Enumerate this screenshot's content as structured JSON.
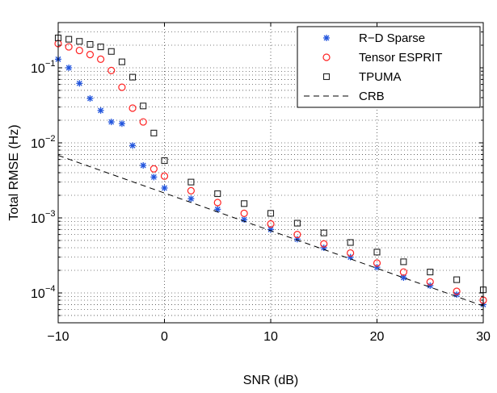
{
  "chart_data": {
    "type": "scatter",
    "xlabel": "SNR (dB)",
    "ylabel": "Total RMSE (Hz)",
    "yscale": "log",
    "xlim": [
      -10,
      30
    ],
    "ylim": [
      4e-05,
      0.4
    ],
    "grid": true,
    "legend_position": "top-right",
    "x_ticks": [
      -10,
      0,
      10,
      20,
      30
    ],
    "y_ticks": [
      {
        "value": 0.1,
        "base": "10",
        "exp": "−1"
      },
      {
        "value": 0.01,
        "base": "10",
        "exp": "−2"
      },
      {
        "value": 0.001,
        "base": "10",
        "exp": "−3"
      },
      {
        "value": 0.0001,
        "base": "10",
        "exp": "−4"
      }
    ],
    "series": [
      {
        "name": "R−D Sparse",
        "marker": "asterisk",
        "color": "#2255dd",
        "points": [
          [
            -10,
            0.13
          ],
          [
            -9,
            0.1
          ],
          [
            -8,
            0.062
          ],
          [
            -7,
            0.039
          ],
          [
            -6,
            0.027
          ],
          [
            -5,
            0.019
          ],
          [
            -4,
            0.018
          ],
          [
            -3,
            0.0092
          ],
          [
            -2,
            0.005
          ],
          [
            -1,
            0.0035
          ],
          [
            0,
            0.0025
          ],
          [
            2.5,
            0.0018
          ],
          [
            5,
            0.0013
          ],
          [
            7.5,
            0.00095
          ],
          [
            10,
            0.0007
          ],
          [
            12.5,
            0.00052
          ],
          [
            15,
            0.0004
          ],
          [
            17.5,
            0.0003
          ],
          [
            20,
            0.00022
          ],
          [
            22.5,
            0.00016
          ],
          [
            25,
            0.000125
          ],
          [
            27.5,
            9.5e-05
          ],
          [
            30,
            7e-05
          ]
        ]
      },
      {
        "name": "Tensor ESPRIT",
        "marker": "circle",
        "color": "#ff2222",
        "points": [
          [
            -10,
            0.21
          ],
          [
            -9,
            0.19
          ],
          [
            -8,
            0.17
          ],
          [
            -7,
            0.15
          ],
          [
            -6,
            0.13
          ],
          [
            -5,
            0.092
          ],
          [
            -4,
            0.055
          ],
          [
            -3,
            0.029
          ],
          [
            -2,
            0.019
          ],
          [
            -1,
            0.0045
          ],
          [
            0,
            0.0036
          ],
          [
            2.5,
            0.0023
          ],
          [
            5,
            0.0016
          ],
          [
            7.5,
            0.00115
          ],
          [
            10,
            0.00083
          ],
          [
            12.5,
            0.0006
          ],
          [
            15,
            0.00045
          ],
          [
            17.5,
            0.00034
          ],
          [
            20,
            0.00025
          ],
          [
            22.5,
            0.00019
          ],
          [
            25,
            0.00014
          ],
          [
            27.5,
            0.000105
          ],
          [
            30,
            8e-05
          ]
        ]
      },
      {
        "name": "TPUMA",
        "marker": "square",
        "color": "#222222",
        "points": [
          [
            -10,
            0.25
          ],
          [
            -9,
            0.24
          ],
          [
            -8,
            0.225
          ],
          [
            -7,
            0.205
          ],
          [
            -6,
            0.19
          ],
          [
            -5,
            0.165
          ],
          [
            -4,
            0.12
          ],
          [
            -3,
            0.075
          ],
          [
            -2,
            0.031
          ],
          [
            -1,
            0.0135
          ],
          [
            0,
            0.0058
          ],
          [
            2.5,
            0.003
          ],
          [
            5,
            0.0021
          ],
          [
            7.5,
            0.00155
          ],
          [
            10,
            0.00115
          ],
          [
            12.5,
            0.00085
          ],
          [
            15,
            0.00063
          ],
          [
            17.5,
            0.00047
          ],
          [
            20,
            0.00035
          ],
          [
            22.5,
            0.00026
          ],
          [
            25,
            0.00019
          ],
          [
            27.5,
            0.00015
          ],
          [
            30,
            0.00011
          ]
        ]
      },
      {
        "name": "CRB",
        "marker": "dashed-line",
        "color": "#000000",
        "points": [
          [
            -10,
            0.0068
          ],
          [
            30,
            6.7e-05
          ]
        ]
      }
    ]
  }
}
